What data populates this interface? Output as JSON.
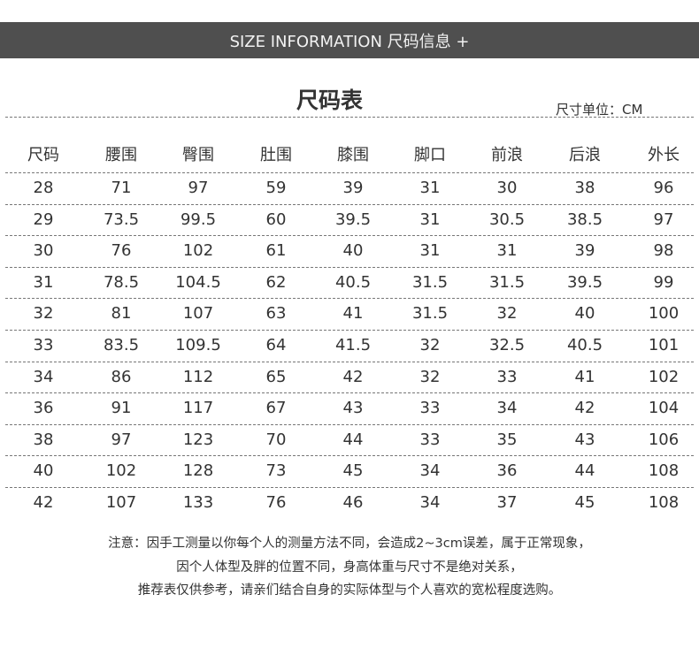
{
  "banner": {
    "title": "SIZE INFORMATION 尺码信息 +"
  },
  "table_title": "尺码表",
  "unit_label": "尺寸单位：CM",
  "headers": [
    "尺码",
    "腰围",
    "臀围",
    "肚围",
    "膝围",
    "脚口",
    "前浪",
    "后浪",
    "外长"
  ],
  "rows": [
    [
      "28",
      "71",
      "97",
      "59",
      "39",
      "31",
      "30",
      "38",
      "96"
    ],
    [
      "29",
      "73.5",
      "99.5",
      "60",
      "39.5",
      "31",
      "30.5",
      "38.5",
      "97"
    ],
    [
      "30",
      "76",
      "102",
      "61",
      "40",
      "31",
      "31",
      "39",
      "98"
    ],
    [
      "31",
      "78.5",
      "104.5",
      "62",
      "40.5",
      "31.5",
      "31.5",
      "39.5",
      "99"
    ],
    [
      "32",
      "81",
      "107",
      "63",
      "41",
      "31.5",
      "32",
      "40",
      "100"
    ],
    [
      "33",
      "83.5",
      "109.5",
      "64",
      "41.5",
      "32",
      "32.5",
      "40.5",
      "101"
    ],
    [
      "34",
      "86",
      "112",
      "65",
      "42",
      "32",
      "33",
      "41",
      "102"
    ],
    [
      "36",
      "91",
      "117",
      "67",
      "43",
      "33",
      "34",
      "42",
      "104"
    ],
    [
      "38",
      "97",
      "123",
      "70",
      "44",
      "33",
      "35",
      "43",
      "106"
    ],
    [
      "40",
      "102",
      "128",
      "73",
      "45",
      "34",
      "36",
      "44",
      "108"
    ],
    [
      "42",
      "107",
      "133",
      "76",
      "46",
      "34",
      "37",
      "45",
      "108"
    ]
  ],
  "notes": [
    "注意：因手工测量以你每个人的测量方法不同，会造成2~3cm误差，属于正常现象，",
    "因个人体型及胖的位置不同，身高体重与尺寸不是绝对关系，",
    "推荐表仅供参考，请亲们结合自身的实际体型与个人喜欢的宽松程度选购。"
  ]
}
